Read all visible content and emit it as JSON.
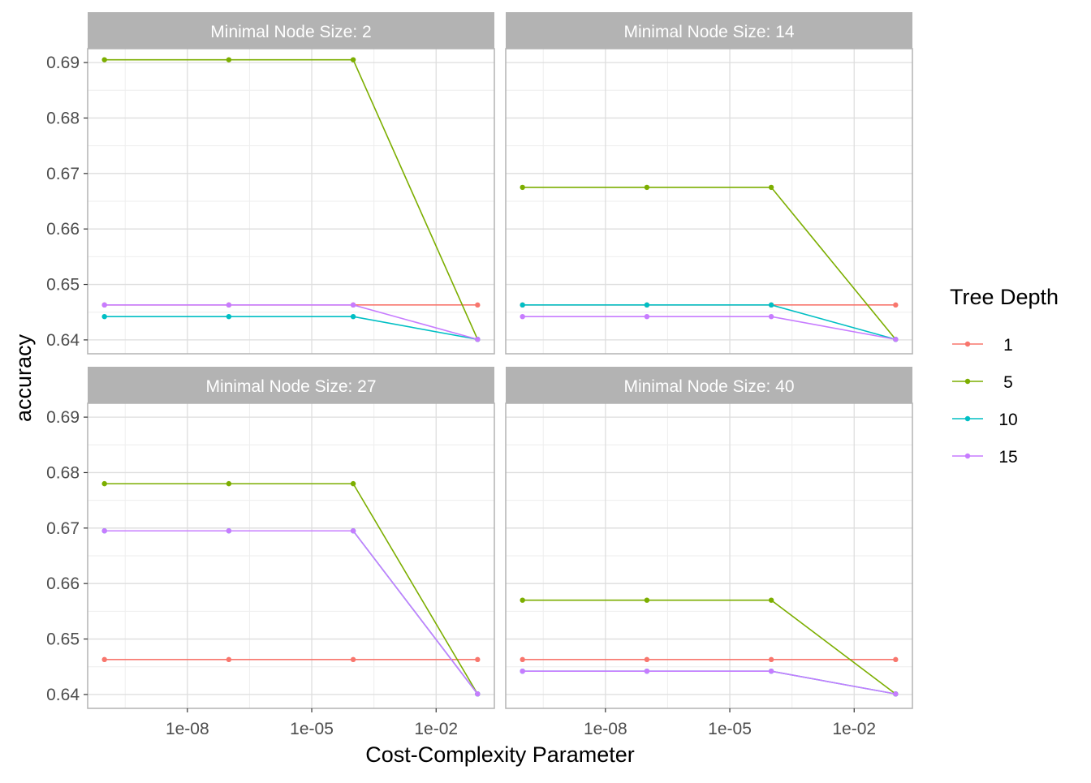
{
  "chart_data": {
    "type": "line",
    "facet_label_prefix": "Minimal Node Size: ",
    "xlabel": "Cost-Complexity Parameter",
    "ylabel": "accuracy",
    "x_scale": "log10",
    "x": [
      1e-10,
      1e-07,
      0.0001,
      0.1
    ],
    "x_ticks": [
      1e-08,
      1e-05,
      0.01
    ],
    "x_tick_labels": [
      "1e-08",
      "1e-05",
      "1e-02"
    ],
    "ylim": [
      0.6375,
      0.6925
    ],
    "y_ticks": [
      0.64,
      0.65,
      0.66,
      0.67,
      0.68,
      0.69
    ],
    "y_tick_labels": [
      "0.64",
      "0.65",
      "0.66",
      "0.67",
      "0.68",
      "0.69"
    ],
    "grid": true,
    "legend": {
      "title": "Tree Depth",
      "position": "right",
      "entries": [
        {
          "label": "1",
          "color": "#F8766D"
        },
        {
          "label": "5",
          "color": "#7CAE00"
        },
        {
          "label": "10",
          "color": "#00BFC4"
        },
        {
          "label": "15",
          "color": "#C77CFF"
        }
      ]
    },
    "facets": [
      {
        "label": "2",
        "series": [
          {
            "name": "1",
            "values": [
              0.6463,
              0.6463,
              0.6463,
              0.6463
            ]
          },
          {
            "name": "5",
            "values": [
              0.6905,
              0.6905,
              0.6905,
              0.6401
            ]
          },
          {
            "name": "10",
            "values": [
              0.6442,
              0.6442,
              0.6442,
              0.6401
            ]
          },
          {
            "name": "15",
            "values": [
              0.6463,
              0.6463,
              0.6463,
              0.6401
            ]
          }
        ]
      },
      {
        "label": "14",
        "series": [
          {
            "name": "1",
            "values": [
              0.6463,
              0.6463,
              0.6463,
              0.6463
            ]
          },
          {
            "name": "5",
            "values": [
              0.6675,
              0.6675,
              0.6675,
              0.6401
            ]
          },
          {
            "name": "10",
            "values": [
              0.6463,
              0.6463,
              0.6463,
              0.6401
            ]
          },
          {
            "name": "15",
            "values": [
              0.6442,
              0.6442,
              0.6442,
              0.6401
            ]
          }
        ]
      },
      {
        "label": "27",
        "series": [
          {
            "name": "1",
            "values": [
              0.6463,
              0.6463,
              0.6463,
              0.6463
            ]
          },
          {
            "name": "5",
            "values": [
              0.678,
              0.678,
              0.678,
              0.6401
            ]
          },
          {
            "name": "10",
            "values": [
              0.6695,
              0.6695,
              0.6695,
              0.6401
            ]
          },
          {
            "name": "15",
            "values": [
              0.6695,
              0.6695,
              0.6695,
              0.6401
            ]
          }
        ]
      },
      {
        "label": "40",
        "series": [
          {
            "name": "1",
            "values": [
              0.6463,
              0.6463,
              0.6463,
              0.6463
            ]
          },
          {
            "name": "5",
            "values": [
              0.657,
              0.657,
              0.657,
              0.6401
            ]
          },
          {
            "name": "10",
            "values": [
              0.6442,
              0.6442,
              0.6442,
              0.6401
            ]
          },
          {
            "name": "15",
            "values": [
              0.6442,
              0.6442,
              0.6442,
              0.6401
            ]
          }
        ]
      }
    ]
  }
}
